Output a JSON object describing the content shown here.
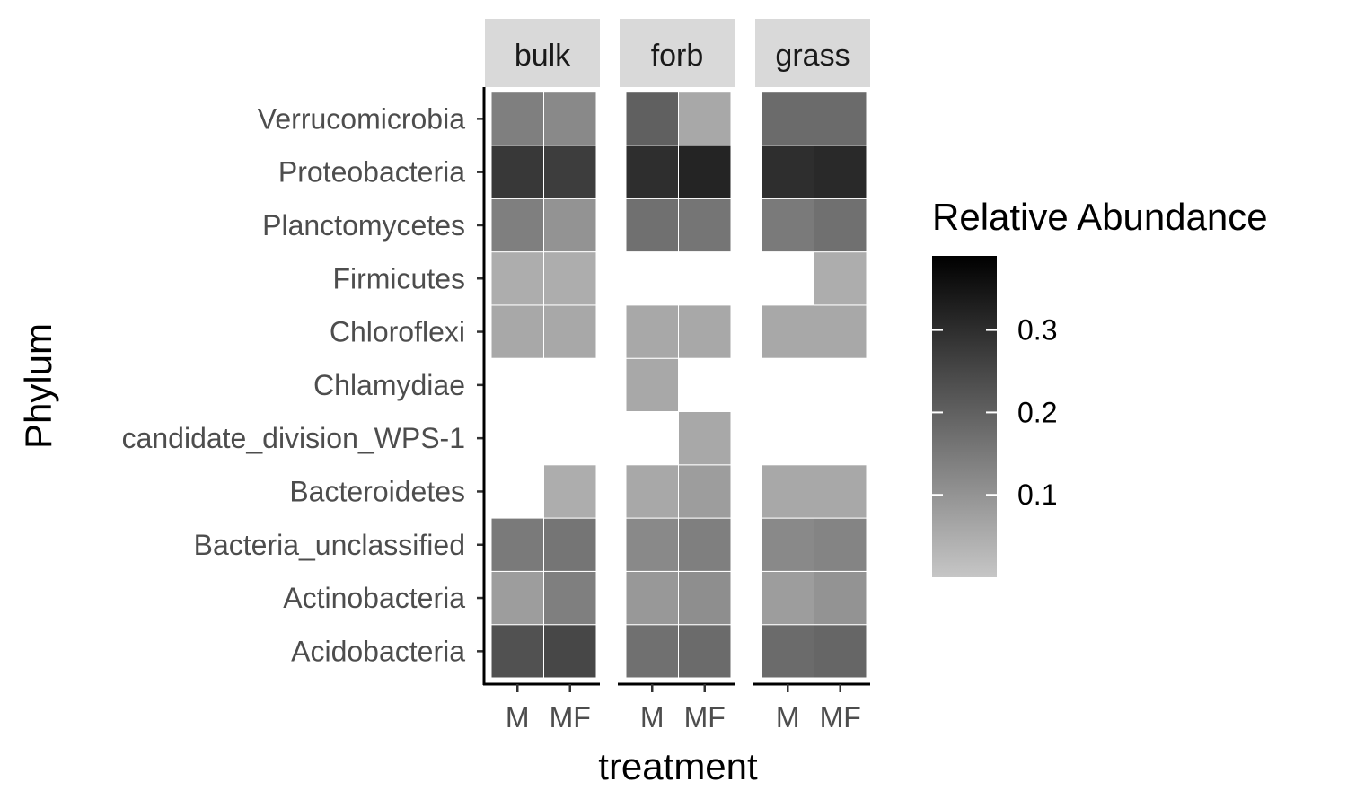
{
  "chart_data": {
    "type": "heatmap",
    "xlabel": "treatment",
    "ylabel": "Phylum",
    "legend": {
      "title": "Relative Abundance",
      "position": "right",
      "ticks": [
        0.1,
        0.2,
        0.3
      ],
      "tick_labels": [
        "0.1",
        "0.2",
        "0.3"
      ],
      "range": [
        0,
        0.39
      ],
      "low_color": "#c6c6c6",
      "high_color": "#000000"
    },
    "facets": [
      "bulk",
      "forb",
      "grass"
    ],
    "x_categories": [
      "M",
      "MF"
    ],
    "y_categories": [
      "Acidobacteria",
      "Actinobacteria",
      "Bacteria_unclassified",
      "Bacteroidetes",
      "candidate_division_WPS-1",
      "Chlamydiae",
      "Chloroflexi",
      "Firmicutes",
      "Planctomycetes",
      "Proteobacteria",
      "Verrucomicrobia"
    ],
    "values": {
      "bulk": {
        "M": {
          "Acidobacteria": 0.23,
          "Actinobacteria": 0.08,
          "Bacteria_unclassified": 0.15,
          "Chloroflexi": 0.06,
          "Firmicutes": 0.05,
          "Planctomycetes": 0.14,
          "Proteobacteria": 0.28,
          "Verrucomicrobia": 0.14
        },
        "MF": {
          "Acidobacteria": 0.25,
          "Actinobacteria": 0.14,
          "Bacteria_unclassified": 0.16,
          "Bacteroidetes": 0.05,
          "Chloroflexi": 0.06,
          "Firmicutes": 0.05,
          "Planctomycetes": 0.1,
          "Proteobacteria": 0.27,
          "Verrucomicrobia": 0.12
        }
      },
      "forb": {
        "M": {
          "Acidobacteria": 0.17,
          "Actinobacteria": 0.09,
          "Bacteria_unclassified": 0.12,
          "Bacteroidetes": 0.06,
          "Chlamydiae": 0.06,
          "Chloroflexi": 0.06,
          "Planctomycetes": 0.17,
          "Proteobacteria": 0.3,
          "Verrucomicrobia": 0.2
        },
        "MF": {
          "Acidobacteria": 0.18,
          "Actinobacteria": 0.11,
          "Bacteria_unclassified": 0.14,
          "Bacteroidetes": 0.08,
          "candidate_division_WPS-1": 0.06,
          "Chloroflexi": 0.06,
          "Planctomycetes": 0.16,
          "Proteobacteria": 0.32,
          "Verrucomicrobia": 0.06
        }
      },
      "grass": {
        "M": {
          "Acidobacteria": 0.18,
          "Actinobacteria": 0.08,
          "Bacteria_unclassified": 0.12,
          "Bacteroidetes": 0.06,
          "Chloroflexi": 0.06,
          "Planctomycetes": 0.15,
          "Proteobacteria": 0.3,
          "Verrucomicrobia": 0.18
        },
        "MF": {
          "Acidobacteria": 0.19,
          "Actinobacteria": 0.1,
          "Bacteria_unclassified": 0.13,
          "Bacteroidetes": 0.06,
          "Chloroflexi": 0.06,
          "Firmicutes": 0.05,
          "Planctomycetes": 0.17,
          "Proteobacteria": 0.31,
          "Verrucomicrobia": 0.18
        }
      }
    }
  }
}
